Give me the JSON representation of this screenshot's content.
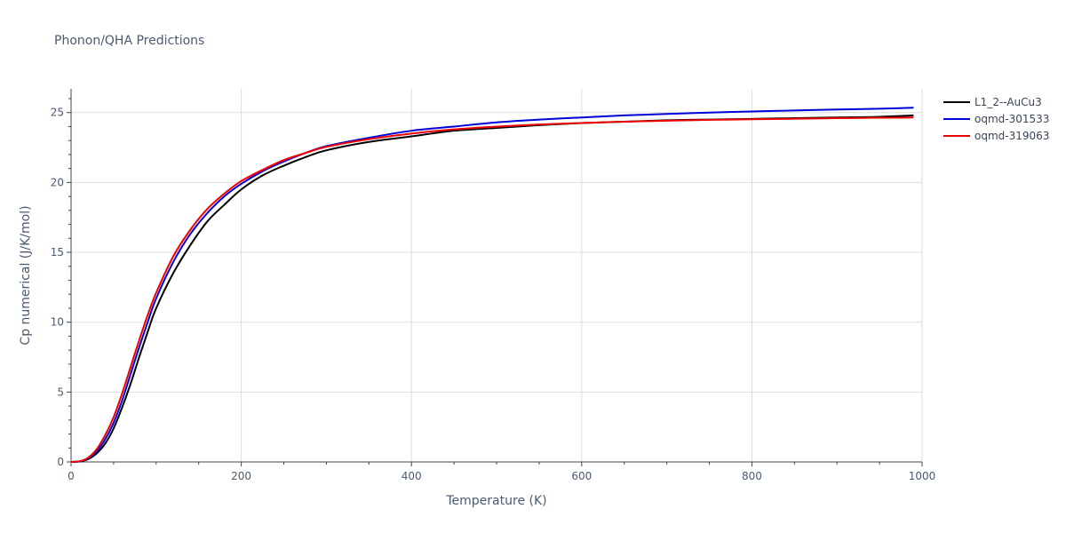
{
  "chart_data": {
    "type": "line",
    "title": "Phonon/QHA Predictions",
    "xlabel": "Temperature (K)",
    "ylabel": "Cp numerical (J/K/mol)",
    "xlim": [
      0,
      1000
    ],
    "ylim": [
      0,
      26.7
    ],
    "xticks": [
      0,
      200,
      400,
      600,
      800,
      1000
    ],
    "xtick_labels": [
      "0",
      "200",
      "400",
      "600",
      "800",
      "1000"
    ],
    "yticks": [
      0,
      5,
      10,
      15,
      20,
      25
    ],
    "ytick_labels": [
      "0",
      "5",
      "10",
      "15",
      "20",
      "25"
    ],
    "grid": true,
    "legend_position": "top-right, outside plot",
    "series": [
      {
        "name": "L1_2--AuCu3",
        "color": "#000000",
        "x": [
          0,
          10,
          20,
          30,
          40,
          50,
          60,
          70,
          80,
          90,
          100,
          120,
          140,
          160,
          180,
          200,
          225,
          250,
          275,
          300,
          350,
          400,
          450,
          500,
          550,
          600,
          650,
          700,
          750,
          800,
          850,
          900,
          950,
          990
        ],
        "y": [
          0,
          0.03,
          0.2,
          0.6,
          1.3,
          2.4,
          3.9,
          5.6,
          7.5,
          9.3,
          11.0,
          13.5,
          15.5,
          17.2,
          18.4,
          19.5,
          20.5,
          21.2,
          21.8,
          22.3,
          22.9,
          23.3,
          23.7,
          23.9,
          24.1,
          24.25,
          24.35,
          24.45,
          24.5,
          24.55,
          24.6,
          24.65,
          24.7,
          24.8
        ]
      },
      {
        "name": "oqmd-301533",
        "color": "#0000dd",
        "x": [
          0,
          10,
          20,
          30,
          40,
          50,
          60,
          70,
          80,
          90,
          100,
          120,
          140,
          160,
          180,
          200,
          225,
          250,
          275,
          300,
          350,
          400,
          450,
          500,
          550,
          600,
          650,
          700,
          750,
          800,
          850,
          900,
          950,
          990
        ],
        "y": [
          0,
          0.04,
          0.25,
          0.75,
          1.6,
          2.8,
          4.4,
          6.3,
          8.2,
          10.0,
          11.7,
          14.3,
          16.3,
          17.8,
          19.0,
          19.9,
          20.8,
          21.5,
          22.1,
          22.6,
          23.2,
          23.7,
          24.0,
          24.3,
          24.5,
          24.65,
          24.8,
          24.9,
          25.0,
          25.08,
          25.15,
          25.22,
          25.28,
          25.35
        ]
      },
      {
        "name": "oqmd-319063",
        "color": "#ee0000",
        "x": [
          0,
          10,
          20,
          30,
          40,
          50,
          60,
          70,
          80,
          90,
          100,
          120,
          140,
          160,
          180,
          200,
          225,
          250,
          275,
          300,
          350,
          400,
          450,
          500,
          550,
          600,
          650,
          700,
          750,
          800,
          850,
          900,
          950,
          990
        ],
        "y": [
          0,
          0.05,
          0.3,
          0.9,
          1.9,
          3.2,
          4.9,
          6.8,
          8.7,
          10.5,
          12.1,
          14.7,
          16.6,
          18.1,
          19.2,
          20.1,
          20.9,
          21.6,
          22.1,
          22.55,
          23.1,
          23.5,
          23.8,
          24.0,
          24.15,
          24.25,
          24.35,
          24.42,
          24.48,
          24.52,
          24.56,
          24.6,
          24.63,
          24.65
        ]
      }
    ]
  }
}
